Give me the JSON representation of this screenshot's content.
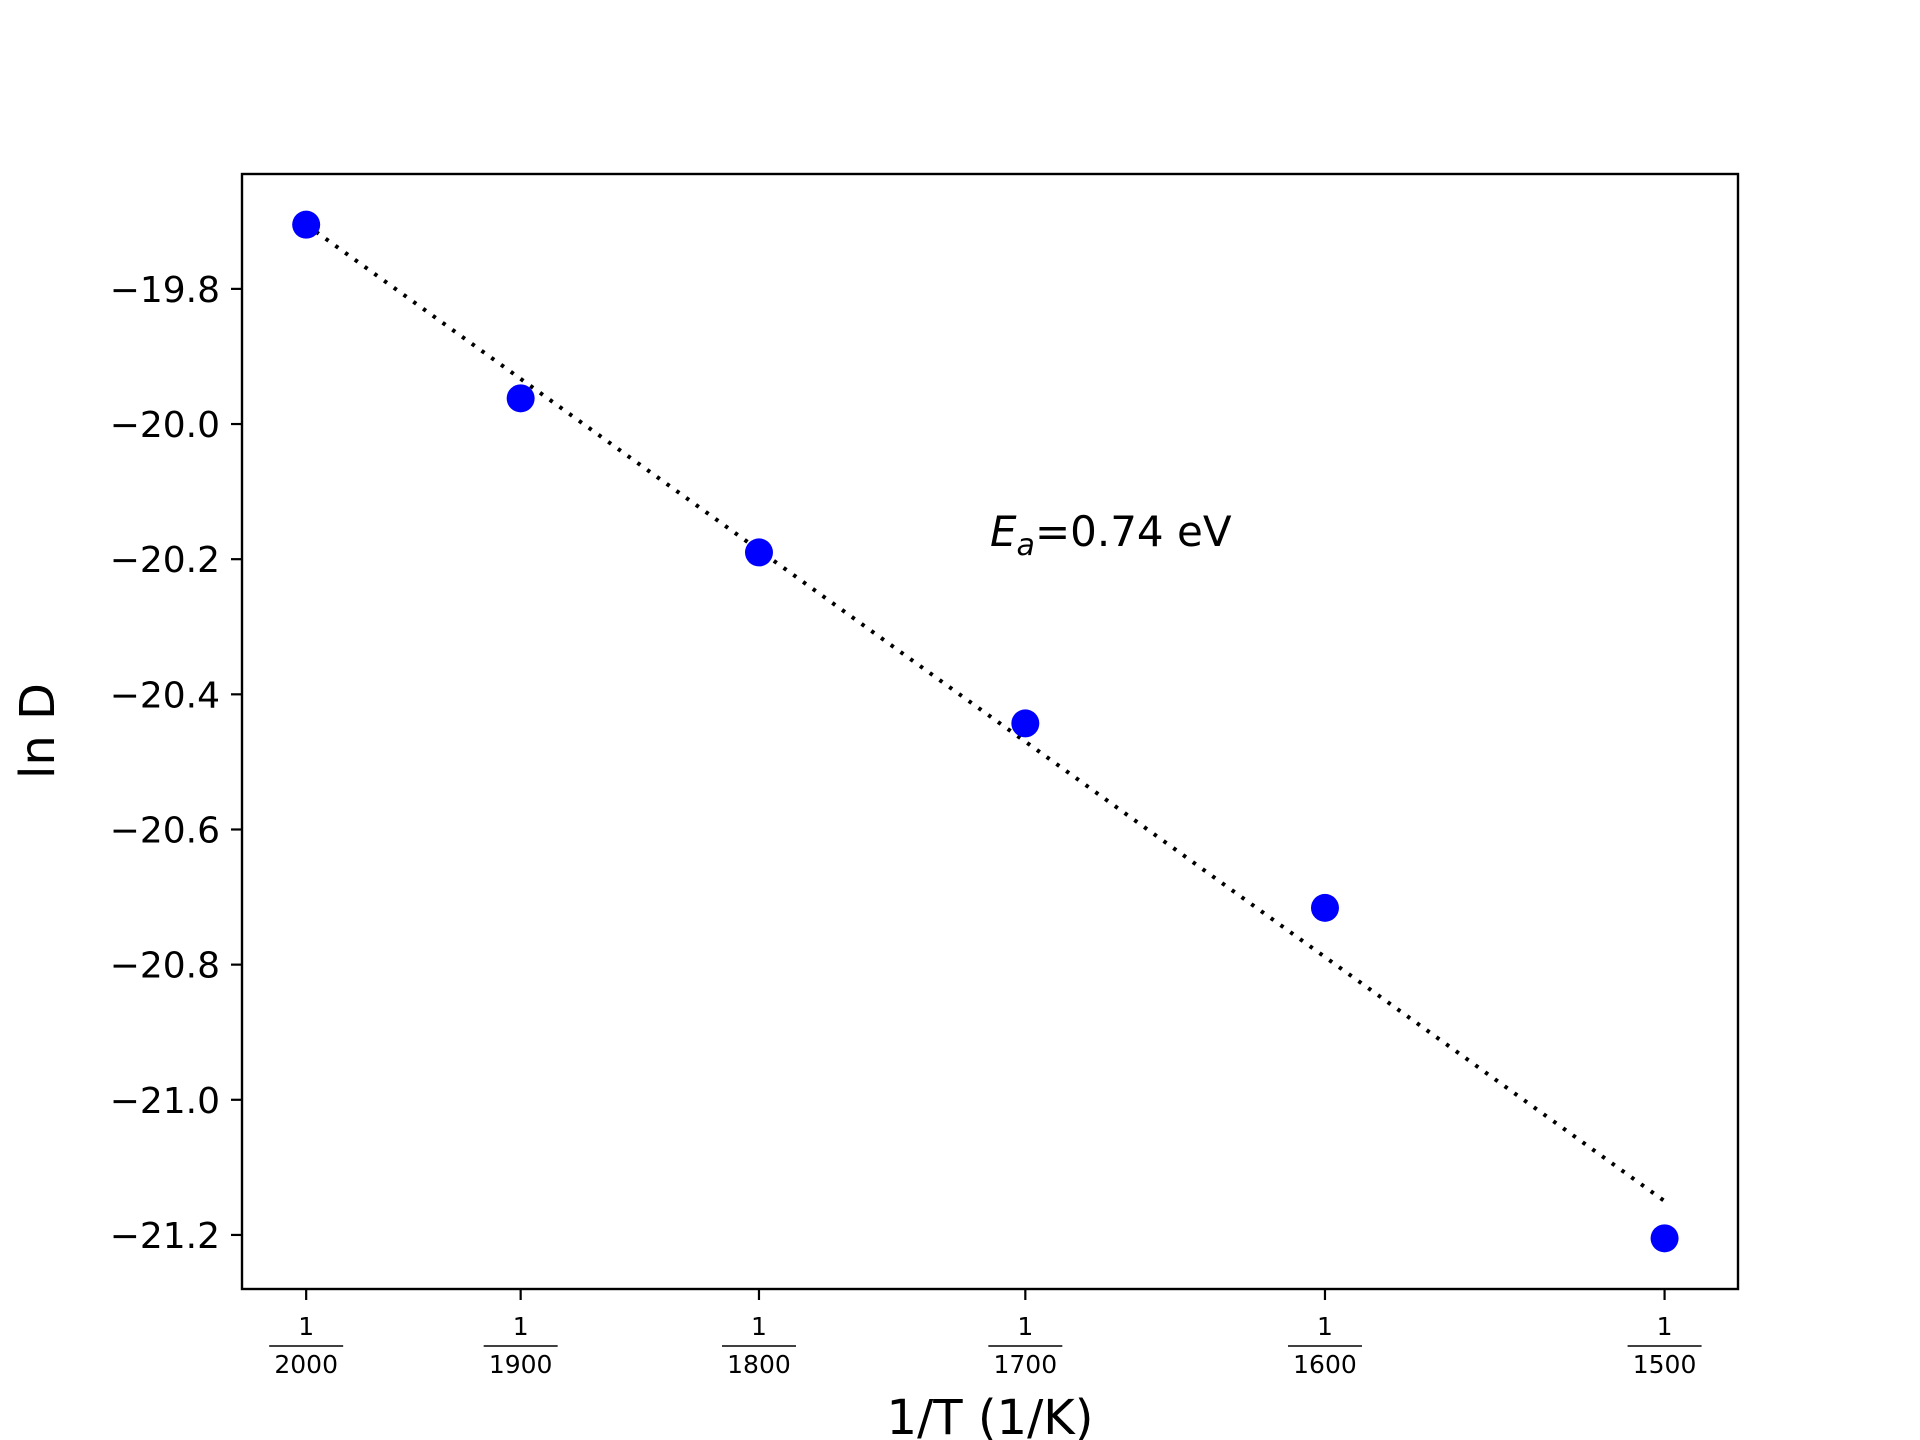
{
  "chart_data": {
    "type": "scatter",
    "xlabel": "1/T (1/K)",
    "ylabel": "ln D",
    "x_scale": "reciprocal",
    "x_ticks": [
      {
        "T": 2000,
        "num": "1",
        "den": "2000"
      },
      {
        "T": 1900,
        "num": "1",
        "den": "1900"
      },
      {
        "T": 1800,
        "num": "1",
        "den": "1800"
      },
      {
        "T": 1700,
        "num": "1",
        "den": "1700"
      },
      {
        "T": 1600,
        "num": "1",
        "den": "1600"
      },
      {
        "T": 1500,
        "num": "1",
        "den": "1500"
      }
    ],
    "y_ticks": [
      "−19.8",
      "−20.0",
      "−20.2",
      "−20.4",
      "−20.6",
      "−20.8",
      "−21.0",
      "−21.2"
    ],
    "y_tick_values": [
      -19.8,
      -20.0,
      -20.2,
      -20.4,
      -20.6,
      -20.8,
      -21.0,
      -21.2
    ],
    "xlim_T": [
      2032,
      1480
    ],
    "ylim": [
      -21.28,
      -19.63
    ],
    "grid": false,
    "legend": "none",
    "series": [
      {
        "kind": "points",
        "color": "#0000ff",
        "points": [
          {
            "T": 2000,
            "lnD": -19.705
          },
          {
            "T": 1900,
            "lnD": -19.962
          },
          {
            "T": 1800,
            "lnD": -20.19
          },
          {
            "T": 1700,
            "lnD": -20.443
          },
          {
            "T": 1600,
            "lnD": -20.716
          },
          {
            "T": 1500,
            "lnD": -21.205
          }
        ]
      },
      {
        "kind": "fit-line",
        "style": "dotted",
        "color": "#000000",
        "points": [
          {
            "T": 2000,
            "lnD": -19.705
          },
          {
            "T": 1500,
            "lnD": -21.15
          }
        ]
      }
    ],
    "annotation": {
      "symbol": "E",
      "subscript": "a",
      "value_text": "=0.74 eV"
    }
  }
}
